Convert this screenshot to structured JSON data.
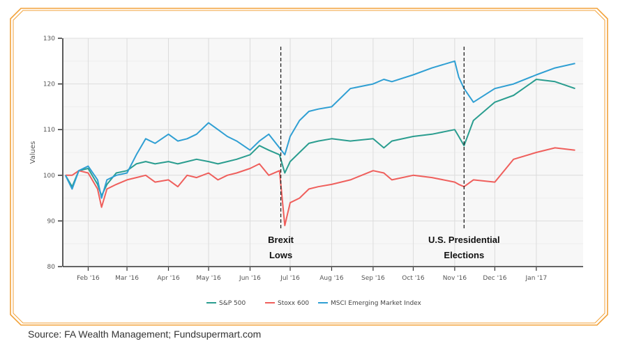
{
  "source": "Source: FA Wealth Management; Fundsupermart.com",
  "colors": {
    "frame": "#f2a23a",
    "sp500": "#2a9d8f",
    "stoxx600": "#ef5f5c",
    "msci": "#2f9fd3",
    "annotation_line": "#222222"
  },
  "chart_data": {
    "type": "line",
    "title": "",
    "xlabel": "",
    "ylabel": "Values",
    "ylim": [
      80,
      130
    ],
    "yticks": [
      80,
      90,
      100,
      110,
      120,
      130
    ],
    "grid": true,
    "legend_position": "bottom",
    "x_tick_labels": [
      "Feb '16",
      "Mar '16",
      "Apr '16",
      "May '16",
      "Jun '16",
      "Jul '16",
      "Aug '16",
      "Sep '16",
      "Oct '16",
      "Nov '16",
      "Dec '16",
      "Jan '17"
    ],
    "x_tick_positions": [
      "2016-02-01",
      "2016-03-01",
      "2016-04-01",
      "2016-05-01",
      "2016-06-01",
      "2016-07-01",
      "2016-08-01",
      "2016-09-01",
      "2016-10-01",
      "2016-11-01",
      "2016-12-01",
      "2017-01-01"
    ],
    "x": [
      "2016-01-15",
      "2016-01-20",
      "2016-01-25",
      "2016-02-01",
      "2016-02-08",
      "2016-02-11",
      "2016-02-15",
      "2016-02-22",
      "2016-03-01",
      "2016-03-08",
      "2016-03-15",
      "2016-03-22",
      "2016-04-01",
      "2016-04-08",
      "2016-04-15",
      "2016-04-22",
      "2016-05-01",
      "2016-05-08",
      "2016-05-15",
      "2016-05-22",
      "2016-06-01",
      "2016-06-08",
      "2016-06-15",
      "2016-06-23",
      "2016-06-27",
      "2016-07-01",
      "2016-07-08",
      "2016-07-15",
      "2016-07-22",
      "2016-08-01",
      "2016-08-15",
      "2016-09-01",
      "2016-09-09",
      "2016-09-15",
      "2016-10-01",
      "2016-10-15",
      "2016-11-01",
      "2016-11-04",
      "2016-11-08",
      "2016-11-15",
      "2016-12-01",
      "2016-12-15",
      "2017-01-01",
      "2017-01-15",
      "2017-01-30"
    ],
    "series": [
      {
        "name": "S&P 500",
        "values": [
          100,
          97.5,
          101,
          101.5,
          98,
          95.5,
          98,
          100.5,
          101,
          102.5,
          103,
          102.5,
          103,
          102.5,
          103,
          103.5,
          103,
          102.5,
          103,
          103.5,
          104.5,
          106.5,
          105.5,
          104.5,
          100.5,
          103,
          105,
          107,
          107.5,
          108,
          107.5,
          108,
          106,
          107.5,
          108.5,
          109,
          110,
          108.5,
          106.5,
          112,
          116,
          117.5,
          121,
          120.5,
          119
        ]
      },
      {
        "name": "Stoxx 600",
        "values": [
          100,
          100,
          101,
          100.5,
          97,
          93,
          97,
          98,
          99,
          99.5,
          100,
          98.5,
          99,
          97.5,
          100,
          99.5,
          100.5,
          99,
          100,
          100.5,
          101.5,
          102.5,
          100,
          101,
          89,
          94,
          95,
          97,
          97.5,
          98,
          99,
          101,
          100.5,
          99,
          100,
          99.5,
          98.5,
          98,
          97.5,
          99,
          98.5,
          103.5,
          105,
          106,
          105.5
        ]
      },
      {
        "name": "MSCI Emerging Market Index",
        "values": [
          100,
          97,
          101,
          102,
          99,
          95,
          99,
          100,
          100.5,
          104.5,
          108,
          107,
          109,
          107.5,
          108,
          109,
          111.5,
          110,
          108.5,
          107.5,
          105.5,
          107.5,
          109,
          106,
          104.5,
          108.5,
          112,
          114,
          114.5,
          115,
          119,
          120,
          121,
          120.5,
          122,
          123.5,
          125,
          121.5,
          119,
          116,
          119,
          120,
          122,
          123.5,
          124.5
        ]
      }
    ],
    "annotations": [
      {
        "x": "2016-06-24",
        "lines": [
          "Brexit",
          "Lows"
        ]
      },
      {
        "x": "2016-11-08",
        "lines": [
          "U.S. Presidential",
          "Elections"
        ]
      }
    ]
  }
}
